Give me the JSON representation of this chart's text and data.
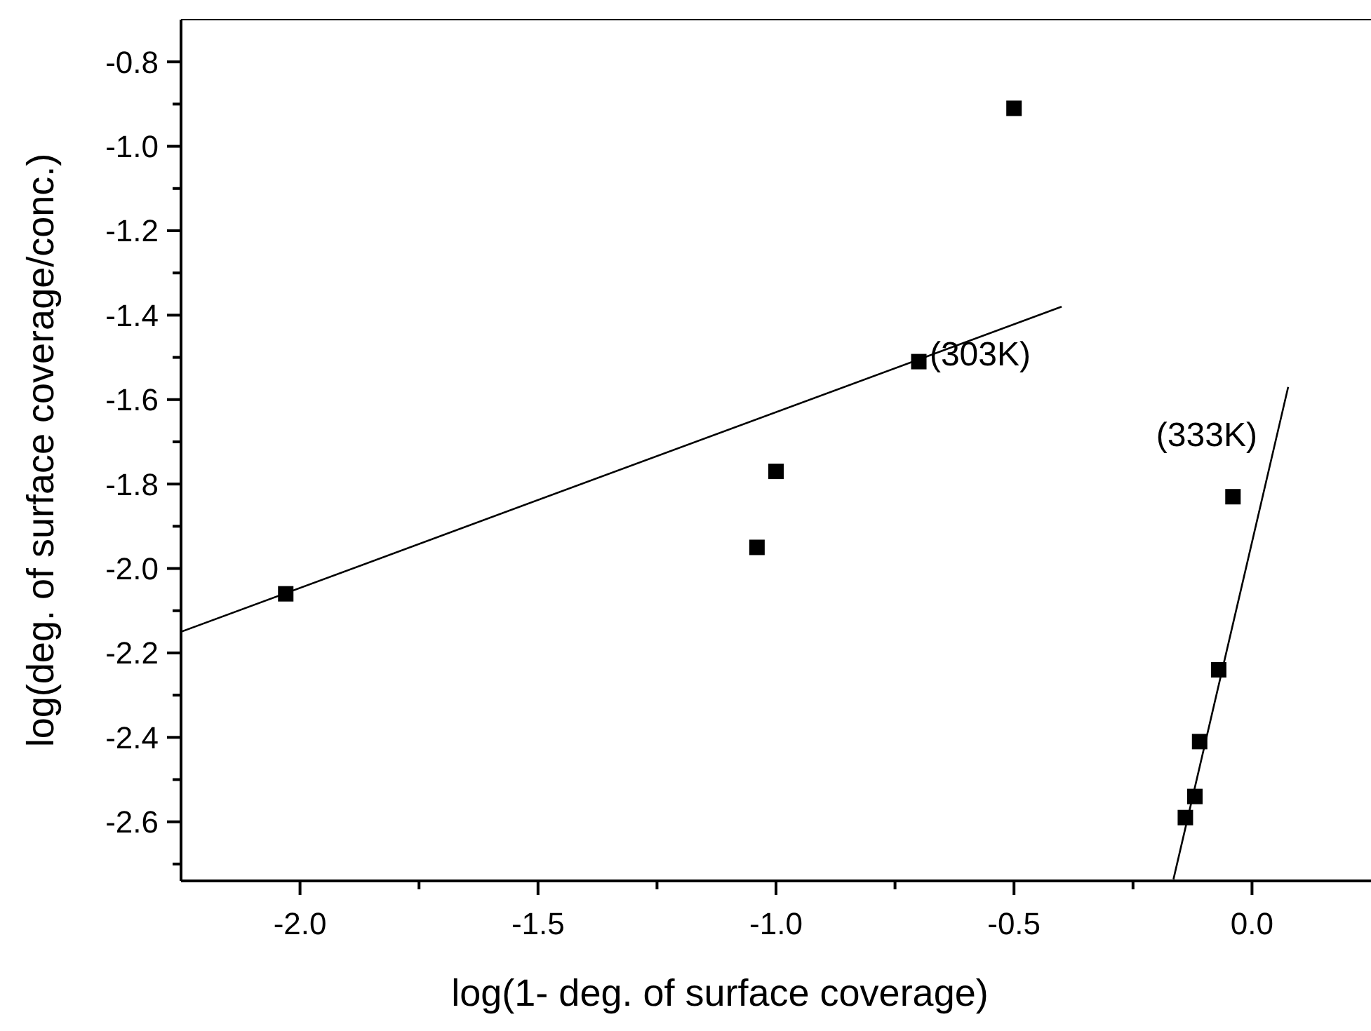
{
  "chart_data": {
    "type": "scatter",
    "xlabel": "log(1- deg. of surface coverage)",
    "ylabel": "log(deg. of surface coverage/conc.)",
    "xlim": [
      -2.25,
      0.25
    ],
    "ylim": [
      -2.74,
      -0.7
    ],
    "xticks": [
      {
        "value": -2,
        "label": "-2.0"
      },
      {
        "value": -1.75,
        "label": null
      },
      -1.5,
      {
        "value": -1.25,
        "label": null
      },
      {
        "value": -1,
        "label": "-1.0"
      },
      {
        "value": -0.75,
        "label": null
      },
      -0.5,
      {
        "value": -0.25,
        "label": null
      },
      {
        "value": 0,
        "label": "0.0"
      }
    ],
    "yticks": [
      {
        "value": -2.7,
        "label": null
      },
      -2.6,
      {
        "value": -2.5,
        "label": null
      },
      -2.4,
      {
        "value": -2.3,
        "label": null
      },
      -2.2,
      {
        "value": -2.1,
        "label": null
      },
      {
        "value": -2,
        "label": "-2.0"
      },
      {
        "value": -1.9,
        "label": null
      },
      -1.8,
      {
        "value": -1.7,
        "label": null
      },
      -1.6,
      {
        "value": -1.5,
        "label": null
      },
      -1.4,
      {
        "value": -1.3,
        "label": null
      },
      -1.2,
      {
        "value": -1.1,
        "label": null
      },
      {
        "value": -1,
        "label": "-1.0"
      },
      {
        "value": -0.9,
        "label": null
      },
      -0.8
    ],
    "marker": "square",
    "grid": false,
    "series": [
      {
        "color": "#000000",
        "x": [
          -2.03,
          -1.04,
          -1.0,
          -0.7,
          -0.5
        ],
        "values": [
          -2.06,
          -1.95,
          -1.77,
          -1.51,
          -0.91
        ]
      },
      {
        "color": "#000000",
        "x": [
          -0.14,
          -0.12,
          -0.11,
          -0.07,
          -0.04
        ],
        "values": [
          -2.59,
          -2.54,
          -2.41,
          -2.24,
          -1.83
        ]
      },
      {
        "type": "line",
        "color": "#000000",
        "marker": "none",
        "x": [
          -2.25,
          -0.4
        ],
        "values": [
          -2.15,
          -1.38
        ]
      },
      {
        "type": "line",
        "color": "#000000",
        "marker": "none",
        "x": [
          -0.165,
          0.076
        ],
        "values": [
          -2.736,
          -1.57
        ]
      }
    ],
    "annotations": [
      "(303K)",
      "(333K)"
    ]
  }
}
